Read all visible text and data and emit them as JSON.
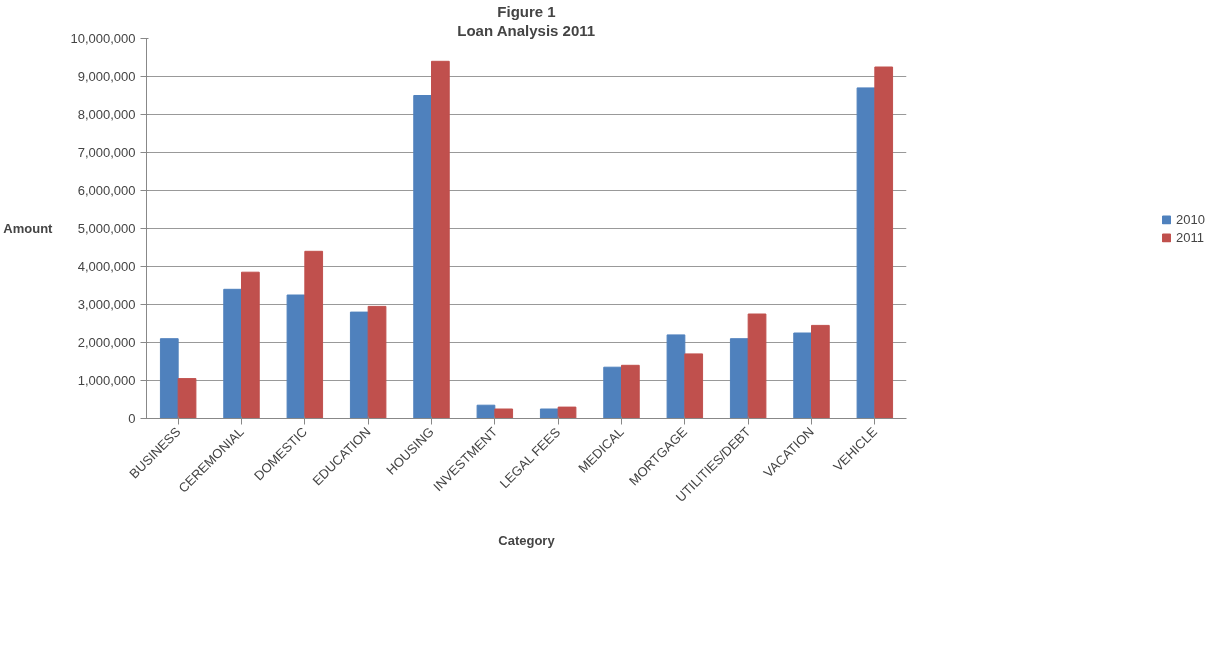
{
  "chart_data": {
    "type": "bar",
    "title": "Figure 1",
    "subtitle": "Loan Analysis 2011",
    "xlabel": "Category",
    "ylabel": "Amount",
    "categories": [
      "BUSINESS",
      "CEREMONIAL",
      "DOMESTIC",
      "EDUCATION",
      "HOUSING",
      "INVESTMENT",
      "LEGAL FEES",
      "MEDICAL",
      "MORTGAGE",
      "UTILITIES/DEBT",
      "VACATION",
      "VEHICLE"
    ],
    "series": [
      {
        "name": "2010",
        "color": "#4f81bd",
        "values": [
          2100000,
          3400000,
          3250000,
          2800000,
          8500000,
          350000,
          250000,
          1350000,
          2200000,
          2100000,
          2250000,
          8700000
        ]
      },
      {
        "name": "2011",
        "color": "#c0504d",
        "values": [
          1050000,
          3850000,
          4400000,
          2950000,
          9400000,
          250000,
          300000,
          1400000,
          1700000,
          2750000,
          2450000,
          9250000
        ]
      }
    ],
    "ylim": [
      0,
      10000000
    ],
    "yticks": [
      {
        "value": 0,
        "label": "0"
      },
      {
        "value": 1000000,
        "label": "1,000,000"
      },
      {
        "value": 2000000,
        "label": "2,000,000"
      },
      {
        "value": 3000000,
        "label": "3,000,000"
      },
      {
        "value": 4000000,
        "label": "4,000,000"
      },
      {
        "value": 5000000,
        "label": "5,000,000"
      },
      {
        "value": 6000000,
        "label": "6,000,000"
      },
      {
        "value": 7000000,
        "label": "7,000,000"
      },
      {
        "value": 8000000,
        "label": "8,000,000"
      },
      {
        "value": 9000000,
        "label": "9,000,000"
      },
      {
        "value": 10000000,
        "label": "10,000,000"
      }
    ],
    "grid": "y",
    "legend": "right"
  }
}
